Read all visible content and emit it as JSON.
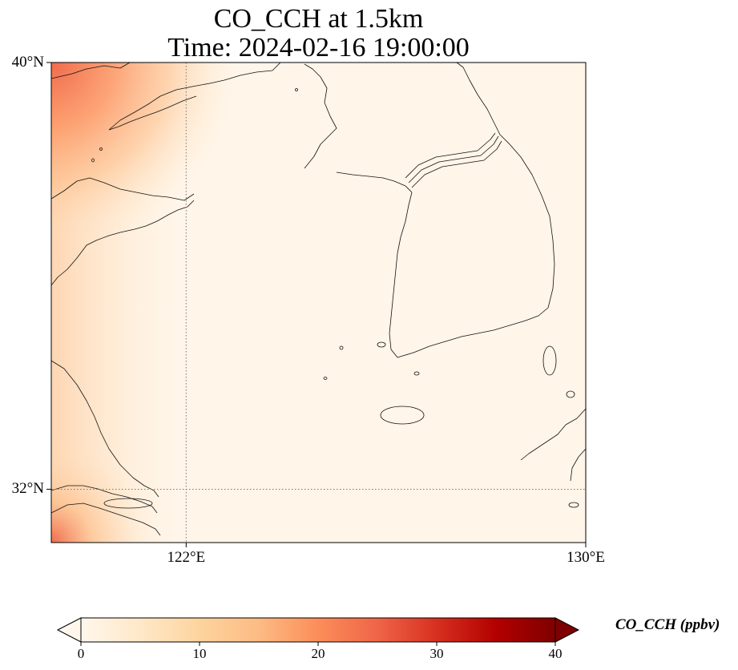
{
  "map": {
    "title_line1": "CO_CCH at 1.5km",
    "title_line2": "Time: 2024-02-16 19:00:00",
    "extent": {
      "lon_min": 119.3,
      "lon_max": 130.0,
      "lat_min": 31.0,
      "lat_max": 40.0
    },
    "lon_ticks": [
      {
        "value": 122,
        "label": "122°E"
      },
      {
        "value": 130,
        "label": "130°E"
      }
    ],
    "lat_ticks": [
      {
        "value": 40,
        "label": "40°N"
      },
      {
        "value": 32,
        "label": "32°N"
      }
    ],
    "gridline_style": "dotted"
  },
  "colorbar": {
    "label": "CO_CCH (ppbv)",
    "colormap": "OrRd",
    "min": 0,
    "max": 40,
    "extend": "both",
    "ticks": [
      {
        "value": 0,
        "label": "0"
      },
      {
        "value": 10,
        "label": "10"
      },
      {
        "value": 20,
        "label": "20"
      },
      {
        "value": 30,
        "label": "30"
      },
      {
        "value": 40,
        "label": "40"
      }
    ],
    "colors": [
      "#fff7ec",
      "#fee8c8",
      "#fdd49e",
      "#fdbb84",
      "#fc8d59",
      "#ef6548",
      "#d7301f",
      "#b30000",
      "#7f0000"
    ]
  },
  "chart_data": {
    "type": "heatmap",
    "title": "CO_CCH at 1.5km\nTime: 2024-02-16 19:00:00",
    "xlabel": "",
    "ylabel": "",
    "xlim": [
      119.3,
      130.0
    ],
    "ylim": [
      31.0,
      40.0
    ],
    "units": "ppbv",
    "colorbar_range": [
      0,
      40
    ],
    "description_of_field": "values near 0 over most of the domain; highest (about 20) in the northwest corner and southwest corner, decreasing toward the east",
    "sample_points": [
      {
        "lon": 119.4,
        "lat": 39.9,
        "value": 20
      },
      {
        "lon": 119.4,
        "lat": 38.0,
        "value": 13
      },
      {
        "lon": 120.5,
        "lat": 39.5,
        "value": 12
      },
      {
        "lon": 121.5,
        "lat": 39.5,
        "value": 8
      },
      {
        "lon": 119.5,
        "lat": 36.0,
        "value": 8
      },
      {
        "lon": 120.5,
        "lat": 37.0,
        "value": 5
      },
      {
        "lon": 119.4,
        "lat": 31.1,
        "value": 17
      },
      {
        "lon": 120.0,
        "lat": 31.4,
        "value": 8
      },
      {
        "lon": 124.0,
        "lat": 36.0,
        "value": 1
      },
      {
        "lon": 128.0,
        "lat": 35.0,
        "value": 1
      }
    ]
  }
}
